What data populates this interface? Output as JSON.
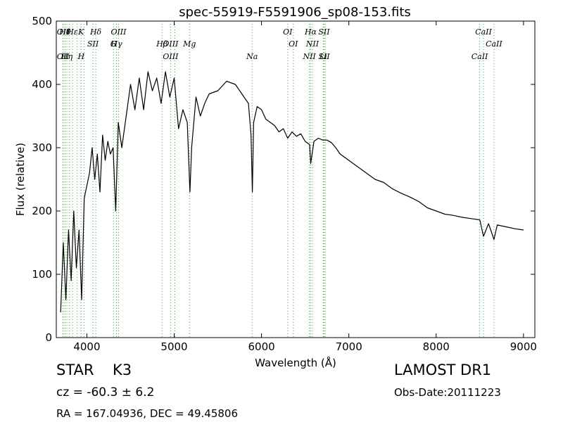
{
  "chart_data": {
    "type": "line",
    "title": "spec-55919-F5591906_sp08-153.fits",
    "xlabel": "Wavelength (Å)",
    "ylabel": "Flux (relative)",
    "xlim": [
      3650,
      9130
    ],
    "ylim": [
      0,
      500
    ],
    "xticks": [
      4000,
      5000,
      6000,
      7000,
      8000,
      9000
    ],
    "yticks": [
      0,
      100,
      200,
      300,
      400,
      500
    ],
    "grid": false,
    "series": [
      {
        "color": "#000000",
        "x": [
          3700,
          3730,
          3760,
          3790,
          3820,
          3850,
          3880,
          3910,
          3940,
          3970,
          4000,
          4030,
          4060,
          4090,
          4120,
          4150,
          4180,
          4210,
          4240,
          4270,
          4300,
          4330,
          4360,
          4400,
          4450,
          4500,
          4550,
          4600,
          4650,
          4700,
          4750,
          4800,
          4850,
          4900,
          4950,
          5000,
          5050,
          5100,
          5150,
          5180,
          5200,
          5250,
          5300,
          5350,
          5400,
          5500,
          5600,
          5700,
          5800,
          5850,
          5880,
          5895,
          5910,
          5950,
          6000,
          6050,
          6100,
          6150,
          6200,
          6250,
          6300,
          6350,
          6400,
          6450,
          6500,
          6550,
          6563,
          6600,
          6650,
          6700,
          6750,
          6800,
          6850,
          6900,
          6950,
          7000,
          7100,
          7200,
          7300,
          7400,
          7500,
          7600,
          7700,
          7800,
          7900,
          8000,
          8100,
          8200,
          8300,
          8400,
          8500,
          8542,
          8600,
          8662,
          8700,
          8800,
          8900,
          9000
        ],
        "y": [
          40,
          150,
          60,
          170,
          90,
          200,
          110,
          170,
          60,
          220,
          240,
          260,
          300,
          250,
          290,
          230,
          320,
          280,
          310,
          290,
          300,
          200,
          340,
          300,
          350,
          400,
          360,
          410,
          360,
          420,
          390,
          410,
          370,
          420,
          380,
          410,
          330,
          360,
          340,
          230,
          300,
          380,
          350,
          370,
          385,
          390,
          405,
          400,
          380,
          370,
          320,
          230,
          340,
          365,
          360,
          345,
          340,
          335,
          325,
          330,
          315,
          325,
          318,
          322,
          310,
          305,
          275,
          310,
          315,
          312,
          312,
          308,
          300,
          290,
          285,
          280,
          270,
          260,
          250,
          245,
          235,
          228,
          222,
          215,
          205,
          200,
          195,
          193,
          190,
          188,
          186,
          160,
          180,
          155,
          178,
          175,
          172,
          170
        ]
      }
    ],
    "lines": [
      {
        "x": 3727,
        "top": "OII",
        "bottom": "OII"
      },
      {
        "x": 3750,
        "top": "Hθ",
        "bottom": ""
      },
      {
        "x": 3771,
        "top": "",
        "bottom": "Hη"
      },
      {
        "x": 3798,
        "top": "",
        "bottom": ""
      },
      {
        "x": 3835,
        "top": "Hε",
        "bottom": ""
      },
      {
        "x": 3889,
        "top": "",
        "bottom": ""
      },
      {
        "x": 3934,
        "top": "K",
        "bottom": "H"
      },
      {
        "x": 3969,
        "top": "",
        "bottom": ""
      },
      {
        "x": 4070,
        "top": "SII",
        "bottom": ""
      },
      {
        "x": 4102,
        "top": "Hδ",
        "bottom": ""
      },
      {
        "x": 4304,
        "top": "",
        "bottom": "G"
      },
      {
        "x": 4340,
        "top": "Hγ",
        "bottom": ""
      },
      {
        "x": 4363,
        "top": "OIII",
        "bottom": ""
      },
      {
        "x": 4861,
        "top": "",
        "bottom": "Hβ"
      },
      {
        "x": 4959,
        "top": "OIII",
        "bottom": "OIII"
      },
      {
        "x": 5007,
        "top": "",
        "bottom": ""
      },
      {
        "x": 5175,
        "top": "",
        "bottom": "Mg"
      },
      {
        "x": 5892,
        "top": "",
        "bottom": "Na"
      },
      {
        "x": 6300,
        "top": "OI",
        "bottom": ""
      },
      {
        "x": 6364,
        "top": "",
        "bottom": "OI"
      },
      {
        "x": 6548,
        "top": "",
        "bottom": "NII"
      },
      {
        "x": 6563,
        "top": "Hα",
        "bottom": ""
      },
      {
        "x": 6583,
        "top": "",
        "bottom": "NII"
      },
      {
        "x": 6707,
        "top": "",
        "bottom": "Li"
      },
      {
        "x": 6716,
        "top": "SII",
        "bottom": "SII"
      },
      {
        "x": 6731,
        "top": "",
        "bottom": ""
      },
      {
        "x": 8498,
        "top": "",
        "bottom": "CaII"
      },
      {
        "x": 8542,
        "top": "CaII",
        "bottom": ""
      },
      {
        "x": 8662,
        "top": "",
        "bottom": "CaII"
      }
    ]
  },
  "info": {
    "object": "STAR",
    "subclass": "K3",
    "cz": "cz = -60.3 ± 6.2",
    "coords": "RA = 167.04936, DEC = 49.45806",
    "survey": "LAMOST DR1",
    "obs_date": "Obs-Date:20111223"
  }
}
